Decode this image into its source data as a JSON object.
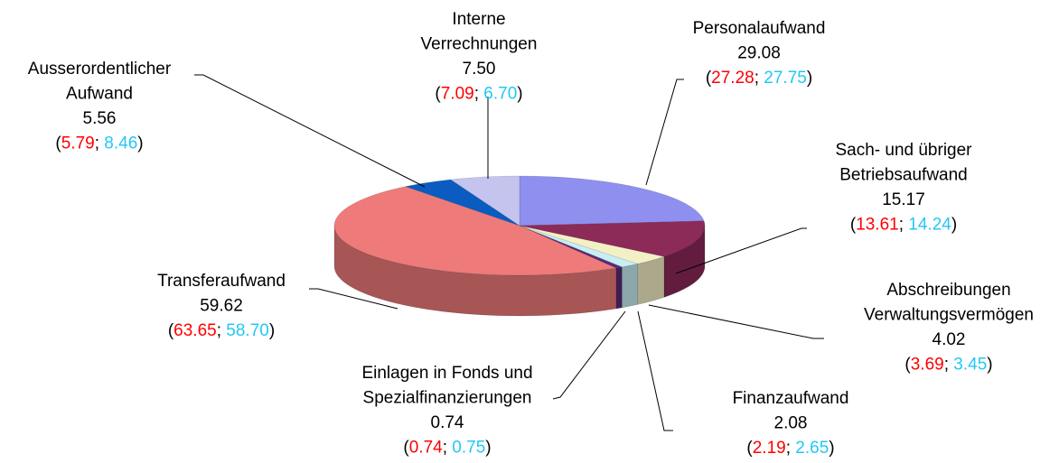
{
  "chart_data": {
    "type": "pie",
    "categories": [
      "Personalaufwand",
      [
        "Sach- und übriger",
        "Betriebsaufwand"
      ],
      [
        "Abschreibungen",
        "Verwaltungsvermögen"
      ],
      "Finanzaufwand",
      [
        "Einlagen in Fonds und",
        "Spezialfinanzierungen"
      ],
      "Transferaufwand",
      [
        "Ausserordentlicher",
        "Aufwand"
      ],
      [
        "Interne",
        "Verrechnungen"
      ]
    ],
    "values": [
      29.08,
      15.17,
      4.02,
      2.08,
      0.74,
      59.62,
      5.56,
      7.5
    ],
    "value_labels": [
      "29.08",
      "15.17",
      "4.02",
      "2.08",
      "0.74",
      "59.62",
      "5.56",
      "7.50"
    ],
    "colors": [
      "#8f8ff0",
      "#8c2a58",
      "#f4f0c6",
      "#c6eef4",
      "#5a2a78",
      "#ee7a7a",
      "#0a5cc0",
      "#c4c4ee"
    ],
    "series": [
      {
        "color": "#ff0000",
        "values": [
          27.28,
          13.61,
          3.69,
          2.19,
          0.74,
          63.65,
          5.79,
          7.09
        ],
        "value_labels": [
          "27.28",
          "13.61",
          "3.69",
          "2.19",
          "0.74",
          "63.65",
          "5.79",
          "7.09"
        ]
      },
      {
        "color": "#22c8f5",
        "values": [
          27.75,
          14.24,
          3.45,
          2.65,
          0.75,
          58.7,
          8.46,
          6.7
        ],
        "value_labels": [
          "27.75",
          "14.24",
          "3.45",
          "2.65",
          "0.75",
          "58.70",
          "8.46",
          "6.70"
        ]
      }
    ]
  }
}
